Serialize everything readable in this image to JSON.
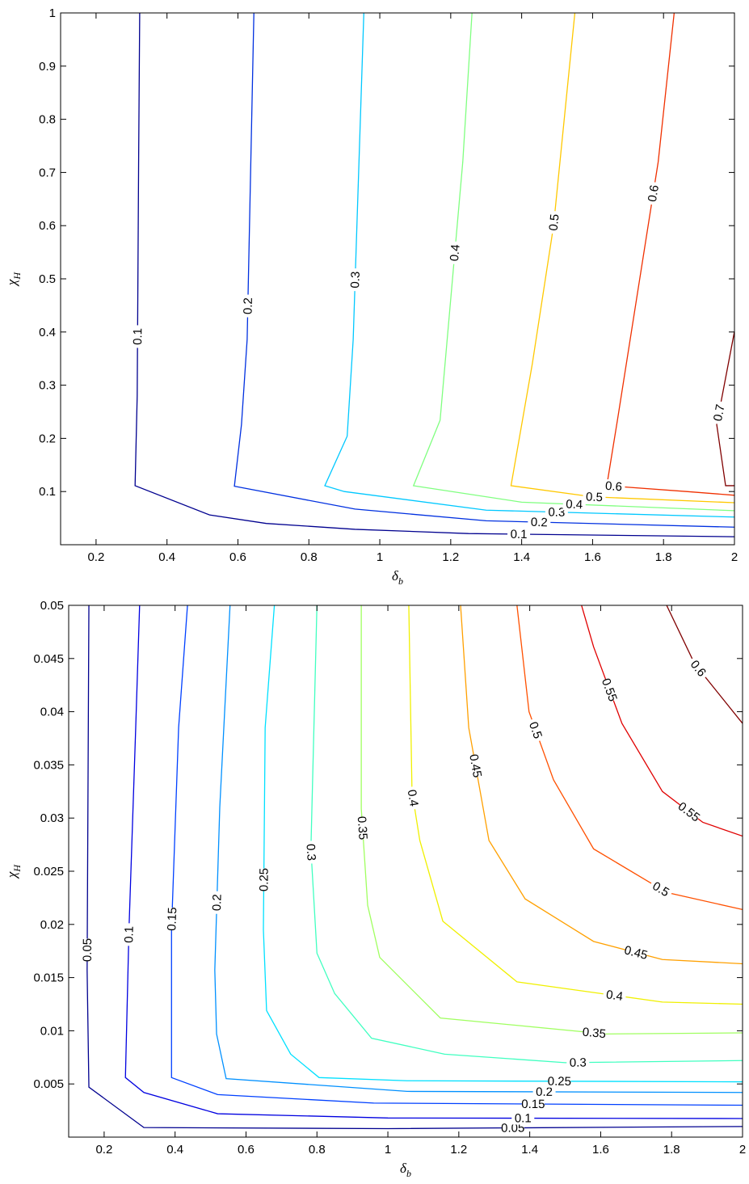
{
  "chart_data": [
    {
      "type": "contour",
      "x_label": {
        "symbol": "δ",
        "subscript": "b"
      },
      "y_label": {
        "symbol": "χ",
        "subscript": "H"
      },
      "xlim": [
        0.1,
        2
      ],
      "ylim": [
        0,
        1
      ],
      "xticks": [
        0.2,
        0.4,
        0.6,
        0.8,
        1,
        1.2,
        1.4,
        1.6,
        1.8,
        2
      ],
      "yticks": [
        0.1,
        0.2,
        0.3,
        0.4,
        0.5,
        0.6,
        0.7,
        0.8,
        0.9,
        1
      ],
      "series": [
        {
          "level": 0.1,
          "color": "#00008f",
          "x": [
            2,
            1.25,
            0.93,
            0.68,
            0.52,
            0.31,
            0.316,
            0.32,
            0.323
          ],
          "y": [
            0.015,
            0.021,
            0.029,
            0.04,
            0.056,
            0.111,
            0.28,
            0.72,
            1
          ]
        },
        {
          "level": 0.2,
          "color": "#0030e0",
          "x": [
            2,
            1.3,
            0.93,
            0.59,
            0.61,
            0.626,
            0.645
          ],
          "y": [
            0.033,
            0.045,
            0.067,
            0.11,
            0.226,
            0.386,
            1
          ]
        },
        {
          "level": 0.3,
          "color": "#00c8ff",
          "x": [
            2,
            1.3,
            0.9,
            0.845,
            0.908,
            0.925,
            0.955
          ],
          "y": [
            0.052,
            0.065,
            0.1,
            0.111,
            0.204,
            0.386,
            1
          ]
        },
        {
          "level": 0.4,
          "color": "#80ff80",
          "x": [
            2,
            1.4,
            1.095,
            1.17,
            1.19,
            1.234,
            1.26
          ],
          "y": [
            0.064,
            0.08,
            0.111,
            0.234,
            0.386,
            0.72,
            1
          ]
        },
        {
          "level": 0.5,
          "color": "#ffc800",
          "x": [
            2,
            1.6,
            1.37,
            1.43,
            1.49,
            1.55
          ],
          "y": [
            0.079,
            0.09,
            0.111,
            0.34,
            0.6,
            1
          ]
        },
        {
          "level": 0.6,
          "color": "#f03000",
          "x": [
            2,
            1.865,
            1.64,
            1.67,
            1.785,
            1.83
          ],
          "y": [
            0.093,
            0.1,
            0.111,
            0.234,
            0.72,
            1
          ]
        },
        {
          "level": 0.7,
          "color": "#800000",
          "x": [
            2,
            1.95,
            1.975,
            2
          ],
          "y": [
            0.401,
            0.226,
            0.111,
            0.111
          ]
        }
      ]
    },
    {
      "type": "contour",
      "x_label": {
        "symbol": "δ",
        "subscript": "b"
      },
      "y_label": {
        "symbol": "χ",
        "subscript": "H"
      },
      "xlim": [
        0.1,
        2
      ],
      "ylim": [
        0,
        0.05
      ],
      "xticks": [
        0.2,
        0.4,
        0.6,
        0.8,
        1,
        1.2,
        1.4,
        1.6,
        1.8,
        2
      ],
      "yticks": [
        0.005,
        0.01,
        0.015,
        0.02,
        0.025,
        0.03,
        0.035,
        0.04,
        0.045,
        0.05
      ],
      "series": [
        {
          "level": 0.05,
          "color": "#00008f",
          "x": [
            2,
            1,
            0.312,
            0.157,
            0.152,
            0.157
          ],
          "y": [
            0.001,
            0.0008,
            0.0009,
            0.0047,
            0.0157,
            0.05
          ]
        },
        {
          "level": 0.1,
          "color": "#0000e0",
          "x": [
            2,
            1,
            0.52,
            0.312,
            0.26,
            0.27,
            0.289,
            0.3
          ],
          "y": [
            0.00175,
            0.0018,
            0.0022,
            0.0042,
            0.0056,
            0.0195,
            0.0385,
            0.05
          ]
        },
        {
          "level": 0.15,
          "color": "#0040ff",
          "x": [
            2,
            0.96,
            0.52,
            0.39,
            0.39,
            0.41,
            0.435
          ],
          "y": [
            0.003,
            0.0032,
            0.004,
            0.0056,
            0.0195,
            0.0385,
            0.05
          ]
        },
        {
          "level": 0.2,
          "color": "#0090ff",
          "x": [
            2,
            1.054,
            0.544,
            0.517,
            0.512,
            0.526,
            0.555
          ],
          "y": [
            0.0042,
            0.0043,
            0.0055,
            0.0097,
            0.0157,
            0.031,
            0.05
          ]
        },
        {
          "level": 0.25,
          "color": "#00e0ff",
          "x": [
            2,
            1.054,
            0.806,
            0.726,
            0.658,
            0.649,
            0.654,
            0.68
          ],
          "y": [
            0.0052,
            0.0053,
            0.0056,
            0.0078,
            0.0119,
            0.0195,
            0.0385,
            0.05
          ]
        },
        {
          "level": 0.3,
          "color": "#40ffc0",
          "x": [
            2,
            1.5,
            1.16,
            0.954,
            0.85,
            0.8,
            0.783,
            0.8
          ],
          "y": [
            0.0072,
            0.007,
            0.0078,
            0.0093,
            0.0135,
            0.0173,
            0.0271,
            0.05
          ]
        },
        {
          "level": 0.35,
          "color": "#a0ff60",
          "x": [
            2,
            1.615,
            1.148,
            0.977,
            0.943,
            0.925,
            0.925
          ],
          "y": [
            0.0098,
            0.0097,
            0.0112,
            0.0169,
            0.0218,
            0.0309,
            0.05
          ]
        },
        {
          "level": 0.4,
          "color": "#f0f000",
          "x": [
            2,
            1.774,
            1.364,
            1.155,
            1.09,
            1.068,
            1.059
          ],
          "y": [
            0.0125,
            0.0127,
            0.0146,
            0.0203,
            0.0279,
            0.0325,
            0.05
          ]
        },
        {
          "level": 0.45,
          "color": "#ffa000",
          "x": [
            2,
            1.774,
            1.58,
            1.387,
            1.285,
            1.228,
            1.205
          ],
          "y": [
            0.0163,
            0.0167,
            0.0184,
            0.0224,
            0.0279,
            0.0385,
            0.05
          ]
        },
        {
          "level": 0.5,
          "color": "#ff5000",
          "x": [
            2,
            1.786,
            1.58,
            1.467,
            1.398,
            1.364
          ],
          "y": [
            0.0214,
            0.023,
            0.0271,
            0.0336,
            0.04,
            0.05
          ]
        },
        {
          "level": 0.55,
          "color": "#e00000",
          "x": [
            2,
            1.888,
            1.774,
            1.66,
            1.58,
            1.546
          ],
          "y": [
            0.0283,
            0.0296,
            0.0325,
            0.0389,
            0.0461,
            0.05
          ]
        },
        {
          "level": 0.6,
          "color": "#800000",
          "x": [
            2,
            1.865,
            1.786
          ],
          "y": [
            0.0389,
            0.0445,
            0.05
          ]
        }
      ]
    }
  ]
}
